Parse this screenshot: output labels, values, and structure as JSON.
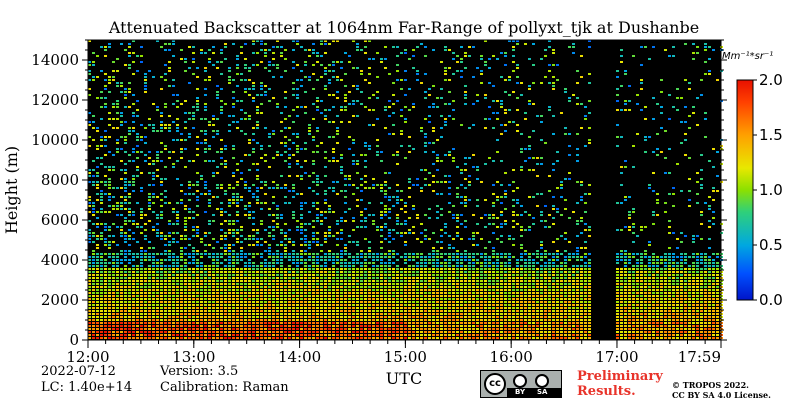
{
  "chart_data": {
    "type": "heatmap",
    "title": "Attenuated Backscatter at 1064nm Far-Range of pollyxt_tjk at Dushanbe",
    "xlabel": "UTC",
    "ylabel": "Height (m)",
    "x_ticks": [
      "12:00",
      "13:00",
      "14:00",
      "15:00",
      "16:00",
      "16:59",
      "17:00",
      "17:59"
    ],
    "x_ticks_display": [
      "12:00",
      "13:00",
      "14:00",
      "15:00",
      "16:00",
      "17:00",
      "17:59"
    ],
    "x_range": [
      "12:00",
      "17:59"
    ],
    "y_ticks": [
      0,
      2000,
      4000,
      6000,
      8000,
      10000,
      12000,
      14000
    ],
    "ylim": [
      0,
      15000
    ],
    "colorbar": {
      "label": "Mm⁻¹*sr⁻¹",
      "ticks": [
        "0.0",
        "0.5",
        "1.0",
        "1.5",
        "2.0"
      ],
      "range": [
        0.0,
        2.0
      ],
      "colormap": "jet"
    },
    "features": {
      "planetary_boundary_layer_top_m": 4000,
      "high_backscatter_layer_m": [
        0,
        1000
      ],
      "no_data_gap_utc": [
        "16:48",
        "16:58"
      ]
    }
  },
  "info": {
    "date": "2022-07-12",
    "lc": "LC: 1.40e+14",
    "version": "Version: 3.5",
    "calibration": "Calibration: Raman"
  },
  "footer": {
    "preliminary_line1": "Preliminary",
    "preliminary_line2": "Results.",
    "copyright_line1": "© TROPOS 2022.",
    "copyright_line2": "CC BY SA 4.0 License."
  },
  "license_badge": {
    "icon_name": "cc-by-sa-badge",
    "text": "cc",
    "by_label": "BY",
    "sa_label": "SA"
  }
}
